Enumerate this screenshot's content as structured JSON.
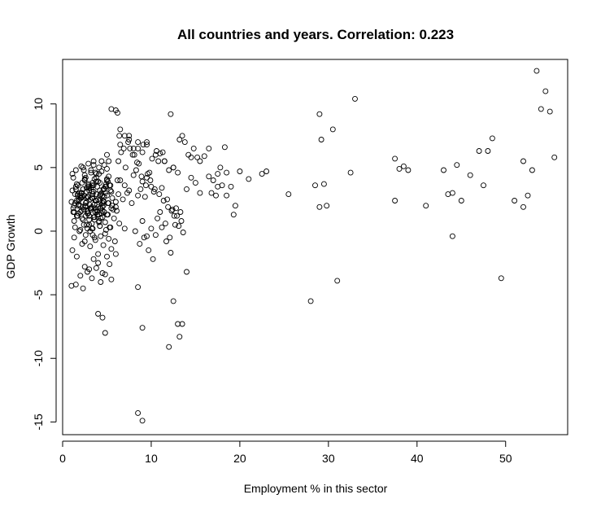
{
  "chart_data": {
    "type": "scatter",
    "title": "All countries and years. Correlation: 0.223",
    "xlabel": "Employment % in this sector",
    "ylabel": "GDP Growth",
    "xlim": [
      0,
      57
    ],
    "ylim": [
      -16,
      13.5
    ],
    "xticks": [
      0,
      10,
      20,
      30,
      40,
      50
    ],
    "yticks": [
      -15,
      -10,
      -5,
      0,
      5,
      10
    ],
    "grid": false,
    "marker": "open-circle",
    "x": [
      1.0,
      1.2,
      1.1,
      1.4,
      1.3,
      1.6,
      1.2,
      1.5,
      1.8,
      1.3,
      1.1,
      1.7,
      1.9,
      2.0,
      2.1,
      1.5,
      1.4,
      1.6,
      1.8,
      2.2,
      2.3,
      2.0,
      2.4,
      2.5,
      2.6,
      2.8,
      2.2,
      2.9,
      3.0,
      2.7,
      3.1,
      3.2,
      2.5,
      3.3,
      3.4,
      2.6,
      3.5,
      3.6,
      3.0,
      3.8,
      3.9,
      4.0,
      3.3,
      4.2,
      4.3,
      4.4,
      3.7,
      4.6,
      4.7,
      4.8,
      4.1,
      5.0,
      5.2,
      4.5,
      5.4,
      5.6,
      5.8,
      4.9,
      6.0,
      6.2,
      2.1,
      2.4,
      2.9,
      3.2,
      3.5,
      3.8,
      4.1,
      4.4,
      4.7,
      5.0,
      2.0,
      2.6,
      3.1,
      3.6,
      4.2,
      4.8,
      5.3,
      5.9,
      6.4,
      7.0,
      1.9,
      2.3,
      2.7,
      3.0,
      3.4,
      3.9,
      4.3,
      4.6,
      5.1,
      5.5,
      1.7,
      2.2,
      2.8,
      3.3,
      3.7,
      4.0,
      4.5,
      4.9,
      5.6,
      6.1,
      2.5,
      2.9,
      3.4,
      3.8,
      4.2,
      4.6,
      5.0,
      5.4,
      1.6,
      2.0,
      2.4,
      2.8,
      3.2,
      3.6,
      4.0,
      4.4,
      4.8,
      5.2,
      5.7,
      6.3,
      1.3,
      1.8,
      2.2,
      2.7,
      3.1,
      3.5,
      3.9,
      4.3,
      4.7,
      5.1,
      1.5,
      2.1,
      2.6,
      3.0,
      3.4,
      3.8,
      4.2,
      4.6,
      5.0,
      5.5,
      1.2,
      1.7,
      2.3,
      2.9,
      3.3,
      3.7,
      4.1,
      4.5,
      5.3,
      6.0,
      6.5,
      7.0,
      7.5,
      8.0,
      8.5,
      9.0,
      9.5,
      10.0,
      6.8,
      7.3,
      7.8,
      8.3,
      8.8,
      9.3,
      9.8,
      10.3,
      6.3,
      6.6,
      7.1,
      7.6,
      8.1,
      8.6,
      9.1,
      9.6,
      10.1,
      10.6,
      11.0,
      11.5,
      12.0,
      12.5,
      13.0,
      11.2,
      11.8,
      12.3,
      12.8,
      13.3,
      6.4,
      6.9,
      7.4,
      7.9,
      8.4,
      8.9,
      9.4,
      9.9,
      10.4,
      10.9,
      11.4,
      11.9,
      12.4,
      12.9,
      13.4,
      14.0,
      14.5,
      15.0,
      15.5,
      16.0,
      16.5,
      17.0,
      17.5,
      18.0,
      8.2,
      8.7,
      9.2,
      9.7,
      10.2,
      10.7,
      11.2,
      11.7,
      12.2,
      12.7,
      9.0,
      9.5,
      10.0,
      10.5,
      11.0,
      11.6,
      12.1,
      12.6,
      13.1,
      13.6,
      18.5,
      19.0,
      19.5,
      20.0,
      21.0,
      22.5,
      23.0,
      16.8,
      17.3,
      17.8,
      18.3,
      19.3,
      15.2,
      14.8,
      14.2,
      13.8,
      13.2,
      12.2,
      11.3,
      10.8,
      6.5,
      7.5,
      8.5,
      9.5,
      10.5,
      11.5,
      12.5,
      13.5,
      14.5,
      15.5,
      16.5,
      17.5,
      18.5,
      5.0,
      5.2,
      5.5,
      6.0,
      6.2,
      6.5,
      7.0,
      7.5,
      8.0,
      8.5,
      9.0,
      9.5,
      1.1,
      1.3,
      1.6,
      1.9,
      2.2,
      2.5,
      2.8,
      3.1,
      3.4,
      3.7,
      4.0,
      4.3,
      4.6,
      4.9,
      5.2,
      5.5,
      2.3,
      2.6,
      2.9,
      3.2,
      3.5,
      3.8,
      4.1,
      4.4,
      4.7,
      5.0,
      2.7,
      3.0,
      3.3,
      3.6,
      3.9,
      4.2,
      4.5,
      4.8,
      5.1,
      5.4,
      1.8,
      2.1,
      2.4,
      2.7,
      3.0,
      3.3,
      3.6,
      3.9,
      4.2,
      4.5,
      1.4,
      1.7,
      2.0,
      2.3,
      2.6,
      2.9,
      3.2,
      3.5,
      3.8,
      4.1,
      2.0,
      2.5,
      3.0,
      3.5,
      4.0,
      4.5,
      5.0,
      5.5,
      6.0,
      2.3,
      2.8,
      3.3,
      3.8,
      4.3,
      4.8,
      5.3,
      25.5,
      28.5,
      29.0,
      29.5,
      30.5,
      32.5,
      33.0,
      29.2,
      29.8,
      28.0,
      29.0,
      31.0,
      37.5,
      38.0,
      38.5,
      39.0,
      43.0,
      43.5,
      44.0,
      44.5,
      45.0,
      46.0,
      47.0,
      47.5,
      48.0,
      48.5,
      51.0,
      52.0,
      52.5,
      53.5,
      54.0,
      54.5,
      55.0,
      55.5,
      53.0,
      52.0,
      49.5,
      44.0,
      37.5,
      41.0,
      1.0,
      1.5,
      4.0,
      4.5,
      4.8,
      12.0,
      8.5,
      9.0,
      13.0,
      13.5,
      9.0,
      8.5,
      13.2,
      14.0,
      12.5
    ],
    "y": [
      2.3,
      1.8,
      3.2,
      2.9,
      1.5,
      2.4,
      4.2,
      3.5,
      2.0,
      0.8,
      4.5,
      1.2,
      3.0,
      2.6,
      1.6,
      4.8,
      0.3,
      3.7,
      2.1,
      1.0,
      3.3,
      2.8,
      0.5,
      4.0,
      1.9,
      2.7,
      3.8,
      1.4,
      0.9,
      3.1,
      2.5,
      1.7,
      4.4,
      3.6,
      0.2,
      2.2,
      1.1,
      4.1,
      3.4,
      2.9,
      1.3,
      3.9,
      0.6,
      2.4,
      1.8,
      3.0,
      4.6,
      2.0,
      1.5,
      3.5,
      0.7,
      2.8,
      4.3,
      1.9,
      3.2,
      2.6,
      1.0,
      3.7,
      2.3,
      4.0,
      5.1,
      4.8,
      5.3,
      4.6,
      5.5,
      4.2,
      5.0,
      4.7,
      5.2,
      4.9,
      0.1,
      -0.3,
      0.0,
      -0.5,
      0.4,
      -0.2,
      0.3,
      -0.8,
      0.6,
      0.2,
      2.5,
      1.9,
      3.4,
      2.1,
      3.8,
      1.6,
      2.9,
      3.3,
      2.2,
      1.8,
      3.6,
      2.7,
      1.4,
      3.1,
      2.4,
      1.9,
      2.8,
      3.5,
      2.0,
      1.6,
      4.1,
      3.7,
      2.6,
      4.5,
      3.2,
      2.3,
      4.0,
      3.6,
      1.2,
      2.0,
      2.8,
      1.6,
      3.4,
      1.1,
      2.5,
      1.4,
      3.0,
      2.2,
      1.7,
      2.9,
      2.0,
      1.4,
      3.0,
      2.3,
      1.8,
      3.6,
      2.1,
      1.0,
      2.7,
      3.9,
      3.3,
      2.6,
      1.2,
      0.5,
      2.9,
      1.7,
      3.8,
      2.4,
      1.3,
      3.1,
      1.5,
      2.8,
      0.9,
      3.5,
      2.6,
      1.5,
      0.8,
      2.2,
      3.6,
      1.9,
      4.0,
      3.6,
      3.2,
      4.4,
      2.8,
      3.9,
      4.2,
      3.5,
      2.5,
      3.0,
      2.2,
      4.8,
      3.3,
      2.7,
      4.6,
      3.1,
      5.5,
      6.2,
      5.0,
      6.5,
      6.0,
      5.3,
      6.8,
      4.5,
      5.7,
      6.3,
      6.1,
      5.5,
      4.8,
      5.0,
      4.6,
      3.4,
      2.5,
      1.6,
      1.8,
      1.5,
      7.5,
      6.5,
      7.0,
      6.0,
      5.4,
      4.3,
      3.6,
      4.0,
      3.3,
      2.9,
      2.4,
      1.9,
      1.7,
      1.2,
      0.8,
      3.3,
      4.2,
      3.8,
      5.5,
      5.9,
      6.5,
      4.0,
      4.5,
      3.6,
      0.0,
      -1.0,
      -0.5,
      -1.5,
      -2.2,
      1.0,
      0.3,
      -0.8,
      -1.7,
      0.5,
      0.8,
      -0.4,
      0.2,
      -0.3,
      1.5,
      0.6,
      -0.5,
      1.2,
      0.4,
      -0.1,
      4.6,
      3.5,
      2.0,
      4.7,
      4.1,
      4.5,
      4.7,
      3.0,
      2.8,
      5.0,
      6.6,
      1.3,
      5.8,
      6.5,
      6.0,
      7.0,
      7.2,
      9.2,
      6.2,
      5.5,
      8.0,
      7.5,
      6.5,
      7.0,
      6.0,
      5.5,
      5.0,
      7.5,
      5.8,
      3.0,
      4.3,
      3.5,
      2.8,
      6.0,
      5.5,
      9.6,
      9.5,
      9.3,
      6.8,
      7.5,
      7.2,
      6.5,
      7.0,
      6.2,
      6.8,
      -1.5,
      -0.5,
      -2.0,
      0.0,
      -1.0,
      -0.8,
      0.2,
      -1.2,
      -0.3,
      -0.7,
      -1.8,
      -0.4,
      -1.1,
      0.1,
      -0.6,
      -1.4,
      5.0,
      4.2,
      3.6,
      4.8,
      5.2,
      3.9,
      4.5,
      5.5,
      3.3,
      4.1,
      0.5,
      1.2,
      0.2,
      0.9,
      1.5,
      0.4,
      1.1,
      0.7,
      1.3,
      0.3,
      2.4,
      3.0,
      1.7,
      2.6,
      3.2,
      1.9,
      2.1,
      3.5,
      2.8,
      1.6,
      2.2,
      2.9,
      1.5,
      3.3,
      2.0,
      2.7,
      1.8,
      3.1,
      2.4,
      1.3,
      -3.5,
      -2.8,
      -3.0,
      -2.2,
      -2.5,
      -3.3,
      -2.0,
      -3.8,
      -1.8,
      -4.5,
      -3.2,
      -3.7,
      -2.9,
      -4.0,
      -3.4,
      -2.6,
      2.9,
      3.6,
      9.2,
      3.7,
      8.0,
      4.6,
      10.4,
      7.2,
      2.0,
      -5.5,
      1.9,
      -3.9,
      5.7,
      4.9,
      5.1,
      4.8,
      4.8,
      2.9,
      3.0,
      5.2,
      2.4,
      4.4,
      6.3,
      3.6,
      6.3,
      7.3,
      2.4,
      1.9,
      2.8,
      12.6,
      9.6,
      11.0,
      9.4,
      5.8,
      4.8,
      5.5,
      -3.7,
      -0.4,
      2.4,
      2.0,
      -4.3,
      -4.2,
      -6.5,
      -6.8,
      -8.0,
      -9.1,
      -14.3,
      -14.9,
      -7.3,
      -7.3,
      -7.6,
      -4.4,
      -8.3,
      -3.2,
      -5.5
    ]
  }
}
